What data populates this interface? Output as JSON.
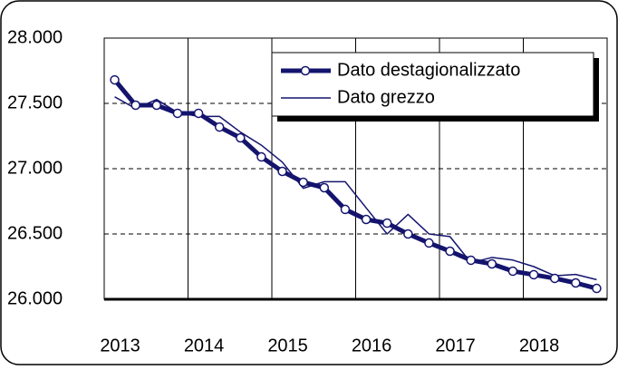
{
  "chart_data": {
    "type": "line",
    "categories": [
      "2013",
      null,
      null,
      null,
      "2014",
      null,
      null,
      null,
      "2015",
      null,
      null,
      null,
      "2016",
      null,
      null,
      null,
      "2017",
      null,
      null,
      null,
      "2018",
      null,
      null,
      null
    ],
    "series": [
      {
        "name": "Dato destagionalizzato",
        "color": "#14146e",
        "values": [
          27680,
          27486,
          27486,
          27424,
          27424,
          27319,
          27236,
          27090,
          26979,
          26896,
          26854,
          26688,
          26611,
          26583,
          26500,
          26431,
          26368,
          26299,
          26271,
          26215,
          26188,
          26160,
          26125,
          26083
        ]
      },
      {
        "name": "Dato grezzo",
        "color": "#14146e",
        "values": [
          27550,
          27460,
          27530,
          27430,
          27400,
          27400,
          27280,
          27180,
          27050,
          26850,
          26900,
          26900,
          26700,
          26500,
          26650,
          26500,
          26480,
          26280,
          26320,
          26300,
          26250,
          26180,
          26190,
          26150
        ]
      }
    ],
    "ylim": [
      26000,
      28000
    ],
    "yticks": [
      {
        "value": 26000,
        "label": "26.000"
      },
      {
        "value": 26500,
        "label": "26.500"
      },
      {
        "value": 27000,
        "label": "27.000"
      },
      {
        "value": 27500,
        "label": "27.500"
      },
      {
        "value": 28000,
        "label": "28.000"
      }
    ],
    "grid": true,
    "legend": "top-right"
  }
}
